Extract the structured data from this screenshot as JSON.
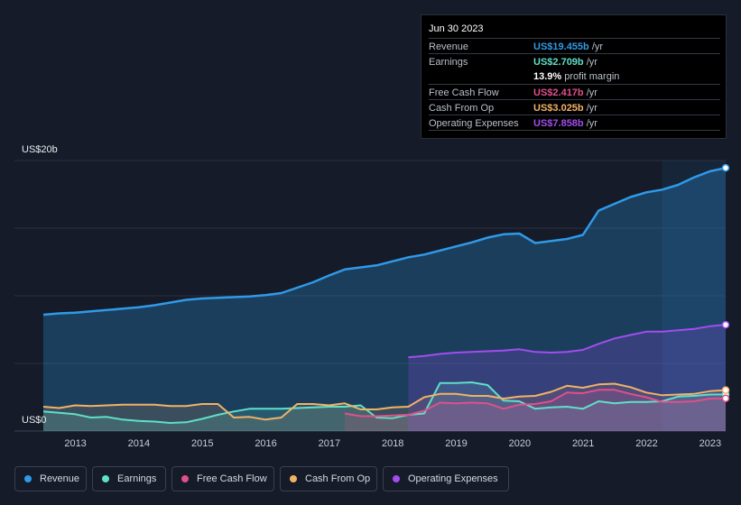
{
  "tooltip": {
    "date": "Jun 30 2023",
    "rows": [
      {
        "label": "Revenue",
        "value": "US$19.455b",
        "unit": " /yr",
        "color": "#2f9ae8"
      },
      {
        "label": "Earnings",
        "value": "US$2.709b",
        "unit": " /yr",
        "color": "#5fe0c8"
      },
      {
        "label": "",
        "value": "13.9%",
        "unit": " profit margin",
        "color": "#ffffff"
      },
      {
        "label": "Free Cash Flow",
        "value": "US$2.417b",
        "unit": " /yr",
        "color": "#e0508a"
      },
      {
        "label": "Cash From Op",
        "value": "US$3.025b",
        "unit": " /yr",
        "color": "#f2b266"
      },
      {
        "label": "Operating Expenses",
        "value": "US$7.858b",
        "unit": " /yr",
        "color": "#a24df0"
      }
    ]
  },
  "legend": [
    {
      "label": "Revenue",
      "color": "#2f9ae8"
    },
    {
      "label": "Earnings",
      "color": "#5fe0c8"
    },
    {
      "label": "Free Cash Flow",
      "color": "#e0508a"
    },
    {
      "label": "Cash From Op",
      "color": "#f2b266"
    },
    {
      "label": "Operating Expenses",
      "color": "#a24df0"
    }
  ],
  "chart_data": {
    "type": "area",
    "y_axis_labels": [
      "US$20b",
      "US$0"
    ],
    "ylim": [
      0,
      20
    ],
    "xlim": [
      2012.75,
      2023.5
    ],
    "x_ticks": [
      "2013",
      "2014",
      "2015",
      "2016",
      "2017",
      "2018",
      "2019",
      "2020",
      "2021",
      "2022",
      "2023"
    ],
    "grid": true,
    "forecast_shade_start": 2022.5,
    "series": [
      {
        "name": "Revenue",
        "color": "#2f9ae8",
        "points": [
          [
            2012.75,
            8.6
          ],
          [
            2013,
            8.7
          ],
          [
            2013.25,
            8.75
          ],
          [
            2013.5,
            8.85
          ],
          [
            2013.75,
            8.95
          ],
          [
            2014,
            9.05
          ],
          [
            2014.25,
            9.15
          ],
          [
            2014.5,
            9.3
          ],
          [
            2014.75,
            9.5
          ],
          [
            2015,
            9.7
          ],
          [
            2015.25,
            9.8
          ],
          [
            2015.5,
            9.85
          ],
          [
            2015.75,
            9.9
          ],
          [
            2016,
            9.95
          ],
          [
            2016.25,
            10.05
          ],
          [
            2016.5,
            10.2
          ],
          [
            2016.75,
            10.6
          ],
          [
            2017,
            11.0
          ],
          [
            2017.25,
            11.5
          ],
          [
            2017.5,
            11.95
          ],
          [
            2017.75,
            12.1
          ],
          [
            2018,
            12.25
          ],
          [
            2018.25,
            12.55
          ],
          [
            2018.5,
            12.85
          ],
          [
            2018.75,
            13.05
          ],
          [
            2019,
            13.35
          ],
          [
            2019.25,
            13.65
          ],
          [
            2019.5,
            13.95
          ],
          [
            2019.75,
            14.3
          ],
          [
            2020,
            14.55
          ],
          [
            2020.25,
            14.6
          ],
          [
            2020.5,
            13.9
          ],
          [
            2020.75,
            14.05
          ],
          [
            2021,
            14.2
          ],
          [
            2021.25,
            14.5
          ],
          [
            2021.5,
            16.3
          ],
          [
            2021.75,
            16.8
          ],
          [
            2022,
            17.3
          ],
          [
            2022.25,
            17.65
          ],
          [
            2022.5,
            17.85
          ],
          [
            2022.75,
            18.2
          ],
          [
            2023,
            18.75
          ],
          [
            2023.25,
            19.2
          ],
          [
            2023.5,
            19.455
          ]
        ]
      },
      {
        "name": "Earnings",
        "color": "#5fe0c8",
        "points": [
          [
            2012.75,
            1.45
          ],
          [
            2013,
            1.35
          ],
          [
            2013.25,
            1.25
          ],
          [
            2013.5,
            1.0
          ],
          [
            2013.75,
            1.05
          ],
          [
            2014,
            0.85
          ],
          [
            2014.25,
            0.75
          ],
          [
            2014.5,
            0.7
          ],
          [
            2014.75,
            0.6
          ],
          [
            2015,
            0.65
          ],
          [
            2015.25,
            0.9
          ],
          [
            2015.5,
            1.2
          ],
          [
            2015.75,
            1.45
          ],
          [
            2016,
            1.65
          ],
          [
            2016.25,
            1.65
          ],
          [
            2016.5,
            1.65
          ],
          [
            2016.75,
            1.7
          ],
          [
            2017,
            1.75
          ],
          [
            2017.25,
            1.8
          ],
          [
            2017.5,
            1.8
          ],
          [
            2017.75,
            1.9
          ],
          [
            2018,
            1.0
          ],
          [
            2018.25,
            0.95
          ],
          [
            2018.5,
            1.2
          ],
          [
            2018.75,
            1.3
          ],
          [
            2019,
            3.55
          ],
          [
            2019.25,
            3.55
          ],
          [
            2019.5,
            3.6
          ],
          [
            2019.75,
            3.4
          ],
          [
            2020,
            2.25
          ],
          [
            2020.25,
            2.2
          ],
          [
            2020.5,
            1.65
          ],
          [
            2020.75,
            1.75
          ],
          [
            2021,
            1.8
          ],
          [
            2021.25,
            1.65
          ],
          [
            2021.5,
            2.2
          ],
          [
            2021.75,
            2.05
          ],
          [
            2022,
            2.15
          ],
          [
            2022.25,
            2.15
          ],
          [
            2022.5,
            2.2
          ],
          [
            2022.75,
            2.55
          ],
          [
            2023,
            2.6
          ],
          [
            2023.25,
            2.7
          ],
          [
            2023.5,
            2.709
          ]
        ]
      },
      {
        "name": "Free Cash Flow",
        "color": "#e0508a",
        "points": [
          [
            2017.5,
            1.3
          ],
          [
            2017.75,
            1.1
          ],
          [
            2018,
            1.1
          ],
          [
            2018.25,
            1.15
          ],
          [
            2018.5,
            1.2
          ],
          [
            2018.75,
            1.5
          ],
          [
            2019,
            2.1
          ],
          [
            2019.25,
            2.05
          ],
          [
            2019.5,
            2.1
          ],
          [
            2019.75,
            2.05
          ],
          [
            2020,
            1.65
          ],
          [
            2020.25,
            1.95
          ],
          [
            2020.5,
            2.0
          ],
          [
            2020.75,
            2.2
          ],
          [
            2021,
            2.85
          ],
          [
            2021.25,
            2.8
          ],
          [
            2021.5,
            3.05
          ],
          [
            2021.75,
            3.05
          ],
          [
            2022,
            2.75
          ],
          [
            2022.25,
            2.5
          ],
          [
            2022.5,
            2.15
          ],
          [
            2022.75,
            2.15
          ],
          [
            2023,
            2.2
          ],
          [
            2023.25,
            2.4
          ],
          [
            2023.5,
            2.417
          ]
        ]
      },
      {
        "name": "Cash From Op",
        "color": "#f2b266",
        "points": [
          [
            2012.75,
            1.8
          ],
          [
            2013,
            1.7
          ],
          [
            2013.25,
            1.9
          ],
          [
            2013.5,
            1.85
          ],
          [
            2013.75,
            1.9
          ],
          [
            2014,
            1.95
          ],
          [
            2014.25,
            1.95
          ],
          [
            2014.5,
            1.95
          ],
          [
            2014.75,
            1.85
          ],
          [
            2015,
            1.85
          ],
          [
            2015.25,
            2.0
          ],
          [
            2015.5,
            2.0
          ],
          [
            2015.75,
            1.0
          ],
          [
            2016,
            1.05
          ],
          [
            2016.25,
            0.85
          ],
          [
            2016.5,
            1.0
          ],
          [
            2016.75,
            2.0
          ],
          [
            2017,
            2.0
          ],
          [
            2017.25,
            1.9
          ],
          [
            2017.5,
            2.05
          ],
          [
            2017.75,
            1.6
          ],
          [
            2018,
            1.6
          ],
          [
            2018.25,
            1.75
          ],
          [
            2018.5,
            1.8
          ],
          [
            2018.75,
            2.5
          ],
          [
            2019,
            2.75
          ],
          [
            2019.25,
            2.75
          ],
          [
            2019.5,
            2.6
          ],
          [
            2019.75,
            2.6
          ],
          [
            2020,
            2.4
          ],
          [
            2020.25,
            2.55
          ],
          [
            2020.5,
            2.6
          ],
          [
            2020.75,
            2.9
          ],
          [
            2021,
            3.35
          ],
          [
            2021.25,
            3.2
          ],
          [
            2021.5,
            3.45
          ],
          [
            2021.75,
            3.5
          ],
          [
            2022,
            3.25
          ],
          [
            2022.25,
            2.85
          ],
          [
            2022.5,
            2.65
          ],
          [
            2022.75,
            2.7
          ],
          [
            2023,
            2.75
          ],
          [
            2023.25,
            2.95
          ],
          [
            2023.5,
            3.025
          ]
        ]
      },
      {
        "name": "Operating Expenses",
        "color": "#a24df0",
        "points": [
          [
            2018.5,
            5.45
          ],
          [
            2018.75,
            5.55
          ],
          [
            2019,
            5.7
          ],
          [
            2019.25,
            5.8
          ],
          [
            2019.5,
            5.85
          ],
          [
            2019.75,
            5.9
          ],
          [
            2020,
            5.95
          ],
          [
            2020.25,
            6.05
          ],
          [
            2020.5,
            5.85
          ],
          [
            2020.75,
            5.8
          ],
          [
            2021,
            5.85
          ],
          [
            2021.25,
            6.0
          ],
          [
            2021.5,
            6.45
          ],
          [
            2021.75,
            6.85
          ],
          [
            2022,
            7.1
          ],
          [
            2022.25,
            7.35
          ],
          [
            2022.5,
            7.35
          ],
          [
            2022.75,
            7.45
          ],
          [
            2023,
            7.55
          ],
          [
            2023.25,
            7.75
          ],
          [
            2023.5,
            7.858
          ]
        ]
      }
    ]
  }
}
